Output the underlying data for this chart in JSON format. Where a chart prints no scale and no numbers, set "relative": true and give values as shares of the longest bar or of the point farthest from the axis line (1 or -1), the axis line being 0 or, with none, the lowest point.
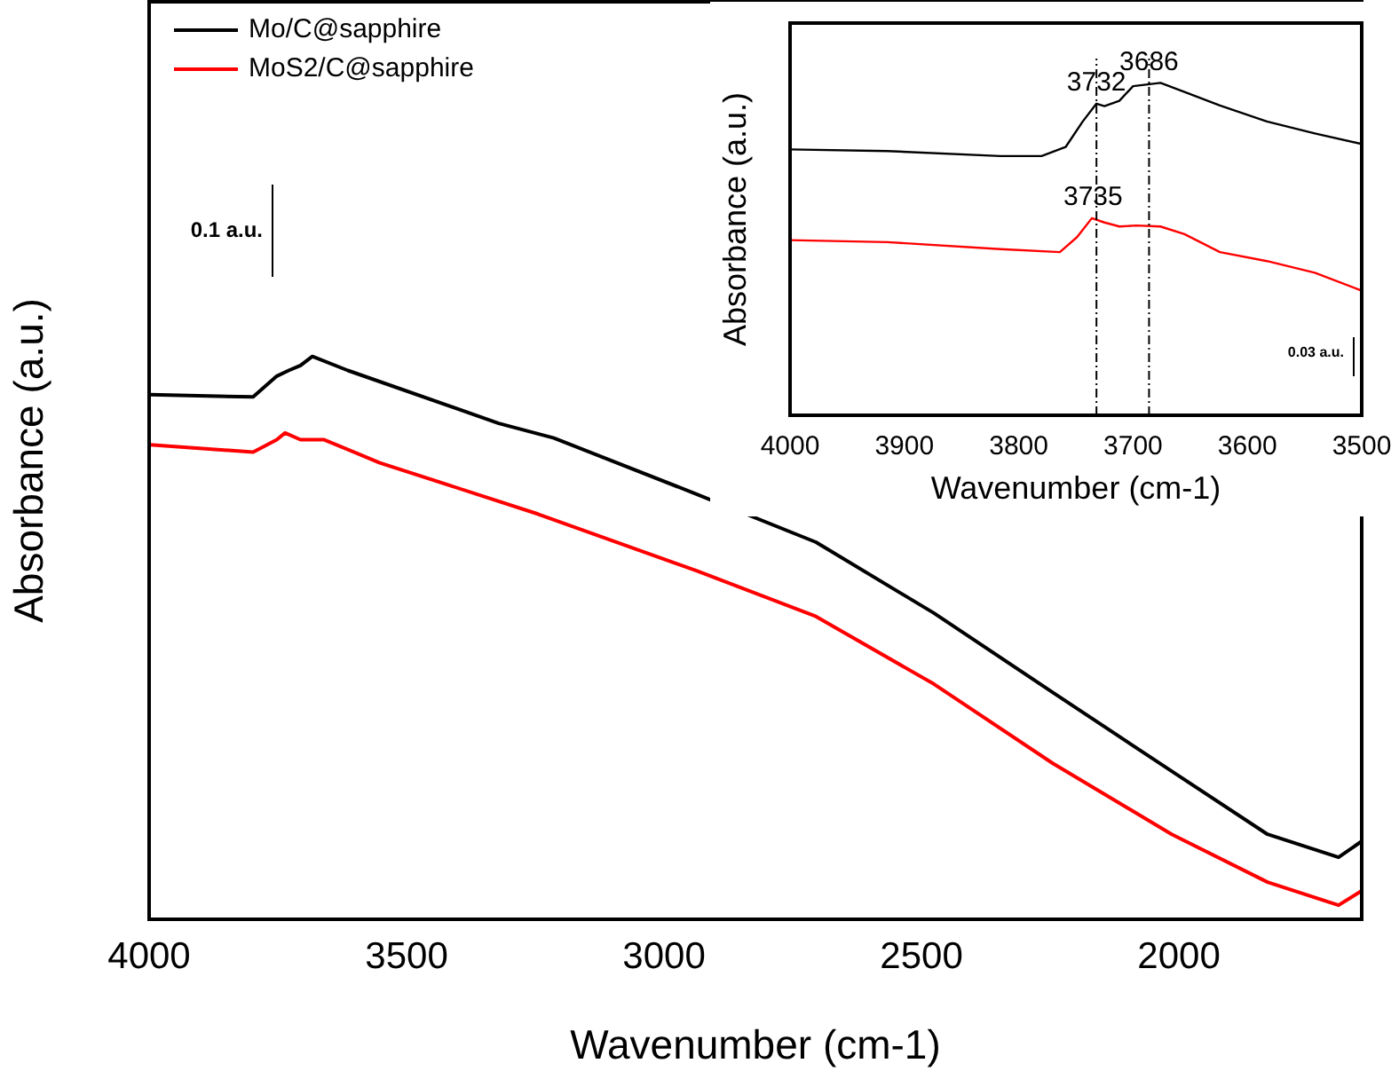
{
  "chart_data": [
    {
      "type": "line",
      "relative": true,
      "xlabel": "Wavenumber (cm-1)",
      "ylabel": "Absorbance (a.u.)",
      "xlim": [
        4000,
        1645
      ],
      "xticks": [
        4000,
        3500,
        3000,
        2500,
        2000
      ],
      "grid": false,
      "legend": "top left",
      "marker": "none",
      "line_style": "solid",
      "tick_labels": "x",
      "annotations": [
        "0.1 a.u."
      ],
      "series": [
        {
          "name": "Mo/C@sapphire",
          "color": "#000000",
          "x": [
            3998,
            3798,
            3752,
            3729,
            3706,
            3683,
            3614,
            3321,
            3214,
            2936,
            2705,
            2476,
            2245,
            2014,
            1828,
            1690,
            1646
          ],
          "values": [
            0.932,
            0.928,
            0.965,
            0.975,
            0.984,
            1,
            0.975,
            0.881,
            0.855,
            0.755,
            0.67,
            0.544,
            0.403,
            0.263,
            0.151,
            0.11,
            0.138
          ]
        },
        {
          "name": "MoS2/C@sapphire",
          "color": "#ff0000",
          "x": [
            3998,
            3798,
            3752,
            3736,
            3706,
            3660,
            3552,
            3245,
            2936,
            2705,
            2476,
            2245,
            2014,
            1828,
            1690,
            1646
          ],
          "values": [
            0.843,
            0.83,
            0.852,
            0.864,
            0.852,
            0.852,
            0.811,
            0.72,
            0.619,
            0.538,
            0.418,
            0.277,
            0.151,
            0.066,
            0.025,
            0.05
          ]
        }
      ]
    },
    {
      "type": "line",
      "relative": true,
      "xlabel": "Wavenumber (cm-1)",
      "ylabel": "Absorbance (a.u.)",
      "xlim": [
        4000,
        3500
      ],
      "xticks": [
        4000,
        3900,
        3800,
        3700,
        3600,
        3500
      ],
      "grid": false,
      "legend": false,
      "marker": "none",
      "line_style": "solid",
      "tick_labels": "x",
      "ref_lines": [
        {
          "axis": "x",
          "value": 3732,
          "line_style": "dashed",
          "color": "#000000"
        },
        {
          "axis": "x",
          "value": 3686,
          "line_style": "dashed",
          "color": "#000000"
        }
      ],
      "annotations": [
        {
          "text": "3732",
          "x": 3732,
          "y": 0.9375
        },
        {
          "text": "3686",
          "x": 3686,
          "y": 1
        },
        {
          "text": "3735",
          "x": 3735,
          "y": 0.593
        },
        "0.03 a.u."
      ],
      "series": [
        {
          "color": "#000000",
          "x": [
            4000,
            3915,
            3816,
            3780,
            3759,
            3744,
            3732,
            3725,
            3712,
            3700,
            3676,
            3655,
            3624,
            3583,
            3541,
            3500
          ],
          "values": [
            0.8,
            0.795,
            0.78,
            0.78,
            0.807,
            0.884,
            0.9375,
            0.93,
            0.946,
            0.99,
            1,
            0.973,
            0.932,
            0.884,
            0.848,
            0.816
          ]
        },
        {
          "color": "#ff0000",
          "x": [
            4000,
            3915,
            3816,
            3764,
            3749,
            3736,
            3725,
            3712,
            3697,
            3676,
            3655,
            3624,
            3583,
            3541,
            3500
          ],
          "values": [
            0.527,
            0.521,
            0.5,
            0.491,
            0.536,
            0.593,
            0.58,
            0.568,
            0.571,
            0.568,
            0.545,
            0.491,
            0.464,
            0.429,
            0.375
          ]
        }
      ]
    }
  ]
}
